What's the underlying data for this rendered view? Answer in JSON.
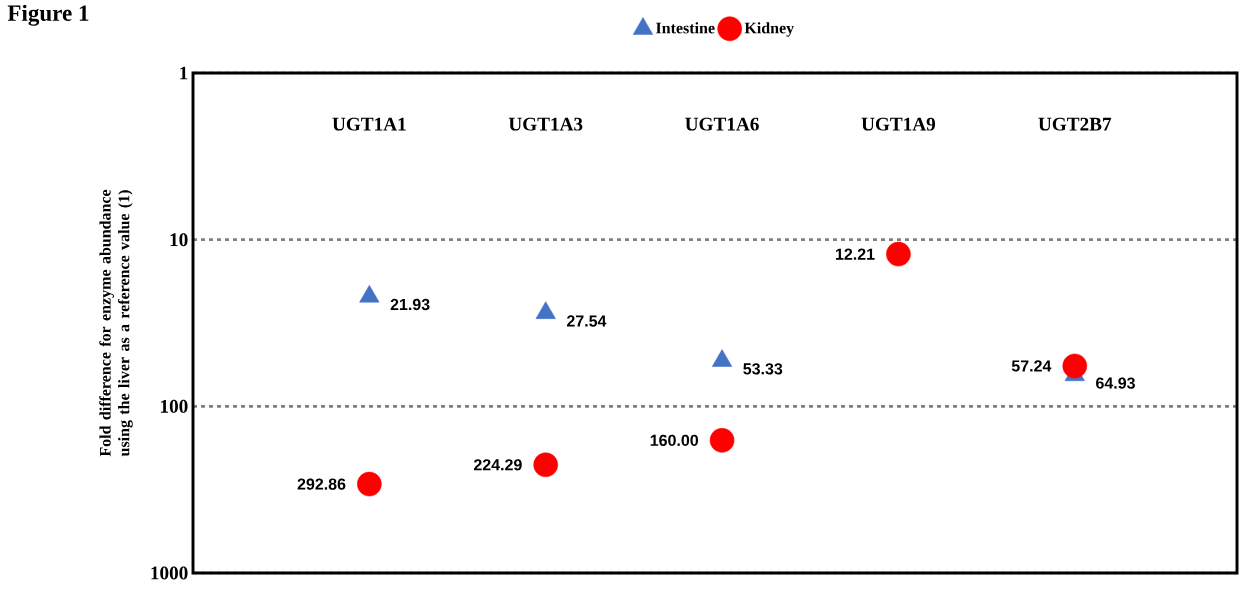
{
  "chart_data": {
    "type": "scatter",
    "title": "Figure 1",
    "ylabel": "Fold difference for enzyme abundance using the liver as a reference value (1)",
    "categories": [
      "UGT1A1",
      "UGT1A3",
      "UGT1A6",
      "UGT1A9",
      "UGT2B7"
    ],
    "series": [
      {
        "name": "Intestine",
        "color": "#4472c4",
        "marker": "triangle",
        "values": [
          21.93,
          27.54,
          53.33,
          null,
          64.93
        ],
        "value_labels": [
          "21.93",
          "27.54",
          "53.33",
          null,
          "64.93"
        ]
      },
      {
        "name": "Kidney",
        "color": "#ff0000",
        "marker": "circle",
        "values": [
          292.86,
          224.29,
          160.0,
          12.21,
          57.24
        ],
        "value_labels": [
          "292.86",
          "224.29",
          "160.00",
          "12.21",
          "57.24"
        ]
      }
    ],
    "log": "y",
    "ylim": [
      1000,
      1
    ],
    "yticks": [
      1,
      10,
      100,
      1000
    ],
    "grid": "y",
    "legend": "top"
  }
}
